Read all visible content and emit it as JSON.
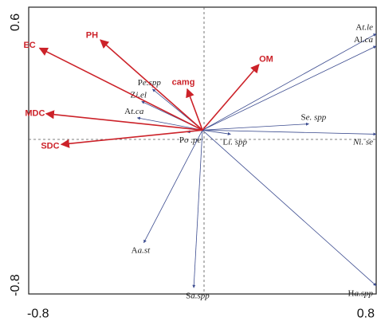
{
  "chart_data": {
    "type": "scatter",
    "subtype": "rda-biplot",
    "title": "",
    "xlabel": "",
    "ylabel": "",
    "xlim": [
      -0.8,
      0.8
    ],
    "ylim": [
      -0.8,
      0.6
    ],
    "x_ticks": [
      {
        "value": -0.8,
        "label": "-0.8"
      },
      {
        "value": 0.8,
        "label": "0.8"
      }
    ],
    "y_ticks": [
      {
        "value": 0.6,
        "label": "0.6"
      },
      {
        "value": -0.8,
        "label": "-0.8"
      }
    ],
    "grid": false,
    "reference_lines": "dashed lines through the origin (x=0, y=0)",
    "colors": {
      "environmental_arrows": "#cc2229",
      "species_arrows": "#3b4b8f",
      "environmental_text": "#cc2229",
      "species_text": "#222222",
      "axes": "#222222"
    },
    "environmental_vectors": [
      {
        "label": "EC",
        "x": -0.75,
        "y": 0.4
      },
      {
        "label": "PH",
        "x": -0.47,
        "y": 0.44
      },
      {
        "label": "MDC",
        "x": -0.72,
        "y": 0.08
      },
      {
        "label": "SDC",
        "x": -0.65,
        "y": -0.07
      },
      {
        "label": "OM",
        "x": 0.26,
        "y": 0.32
      },
      {
        "label": "camg",
        "x": -0.07,
        "y": 0.2
      }
    ],
    "species_vectors": [
      {
        "label_parts": [
          "A",
          "t.le"
        ],
        "x": 1.0,
        "y": 0.47
      },
      {
        "label_parts": [
          "Al.",
          "ca"
        ],
        "x": 1.0,
        "y": 0.41
      },
      {
        "label_parts": [
          "",
          "Ni. se"
        ],
        "x": 1.06,
        "y": -0.02
      },
      {
        "label_parts": [
          "S",
          "e. spp"
        ],
        "x": 0.49,
        "y": 0.03
      },
      {
        "label_parts": [
          "P",
          "e.spp"
        ],
        "x": -0.23,
        "y": 0.2
      },
      {
        "label_parts": [
          "Z",
          "i.el"
        ],
        "x": -0.28,
        "y": 0.14
      },
      {
        "label_parts": [
          "A",
          "t.ca"
        ],
        "x": -0.3,
        "y": 0.06
      },
      {
        "label_parts": [
          "P",
          "o .pe"
        ],
        "x": -0.07,
        "y": -0.01
      },
      {
        "label_parts": [
          "L",
          "i. spp"
        ],
        "x": 0.13,
        "y": -0.02
      },
      {
        "label_parts": [
          "A",
          "a.st"
        ],
        "x": -0.27,
        "y": -0.55
      },
      {
        "label_parts": [
          "S",
          "a.spp"
        ],
        "x": -0.04,
        "y": -0.77
      },
      {
        "label_parts": [
          "H",
          "a.spp"
        ],
        "x": 0.95,
        "y": -0.76
      }
    ]
  }
}
